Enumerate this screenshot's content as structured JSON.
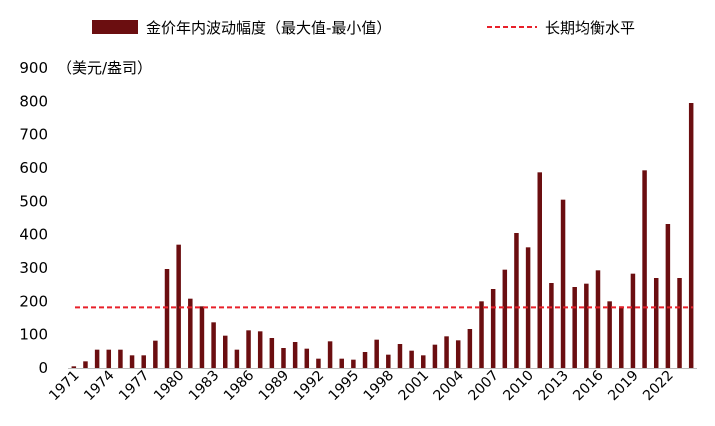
{
  "chart_data": {
    "type": "bar",
    "title": "",
    "unit_label": "（美元/盎司）",
    "series": [
      {
        "name": "金价年内波动幅度（最大值-最小值）",
        "color": "#6b0e10",
        "x": [
          1971,
          1972,
          1973,
          1974,
          1975,
          1976,
          1977,
          1978,
          1979,
          1980,
          1981,
          1982,
          1983,
          1984,
          1985,
          1986,
          1987,
          1988,
          1989,
          1990,
          1991,
          1992,
          1993,
          1994,
          1995,
          1996,
          1997,
          1998,
          1999,
          2000,
          2001,
          2002,
          2003,
          2004,
          2005,
          2006,
          2007,
          2008,
          2009,
          2010,
          2011,
          2012,
          2013,
          2014,
          2015,
          2016,
          2017,
          2018,
          2019,
          2020,
          2021,
          2022,
          2023,
          2024
        ],
        "values": [
          5,
          20,
          55,
          55,
          55,
          38,
          38,
          82,
          297,
          370,
          208,
          185,
          137,
          97,
          55,
          113,
          110,
          90,
          60,
          78,
          58,
          28,
          80,
          28,
          25,
          48,
          85,
          40,
          72,
          52,
          38,
          70,
          95,
          83,
          117,
          200,
          237,
          295,
          405,
          362,
          587,
          255,
          505,
          243,
          253,
          293,
          200,
          185,
          283,
          593,
          270,
          432,
          270,
          795
        ]
      }
    ],
    "reference_lines": [
      {
        "name": "长期均衡水平",
        "value": 182,
        "color": "#e8202a",
        "style": "dashed"
      }
    ],
    "y_axis": {
      "min": 0,
      "max": 900,
      "ticks": [
        0,
        100,
        200,
        300,
        400,
        500,
        600,
        700,
        800,
        900
      ]
    },
    "x_axis": {
      "tick_labels": [
        "1971",
        "1974",
        "1977",
        "1980",
        "1983",
        "1986",
        "1989",
        "1992",
        "1995",
        "1998",
        "2001",
        "2004",
        "2007",
        "2010",
        "2013",
        "2016",
        "2019",
        "2022"
      ]
    },
    "legend": {
      "position": "top"
    },
    "grid": false
  }
}
